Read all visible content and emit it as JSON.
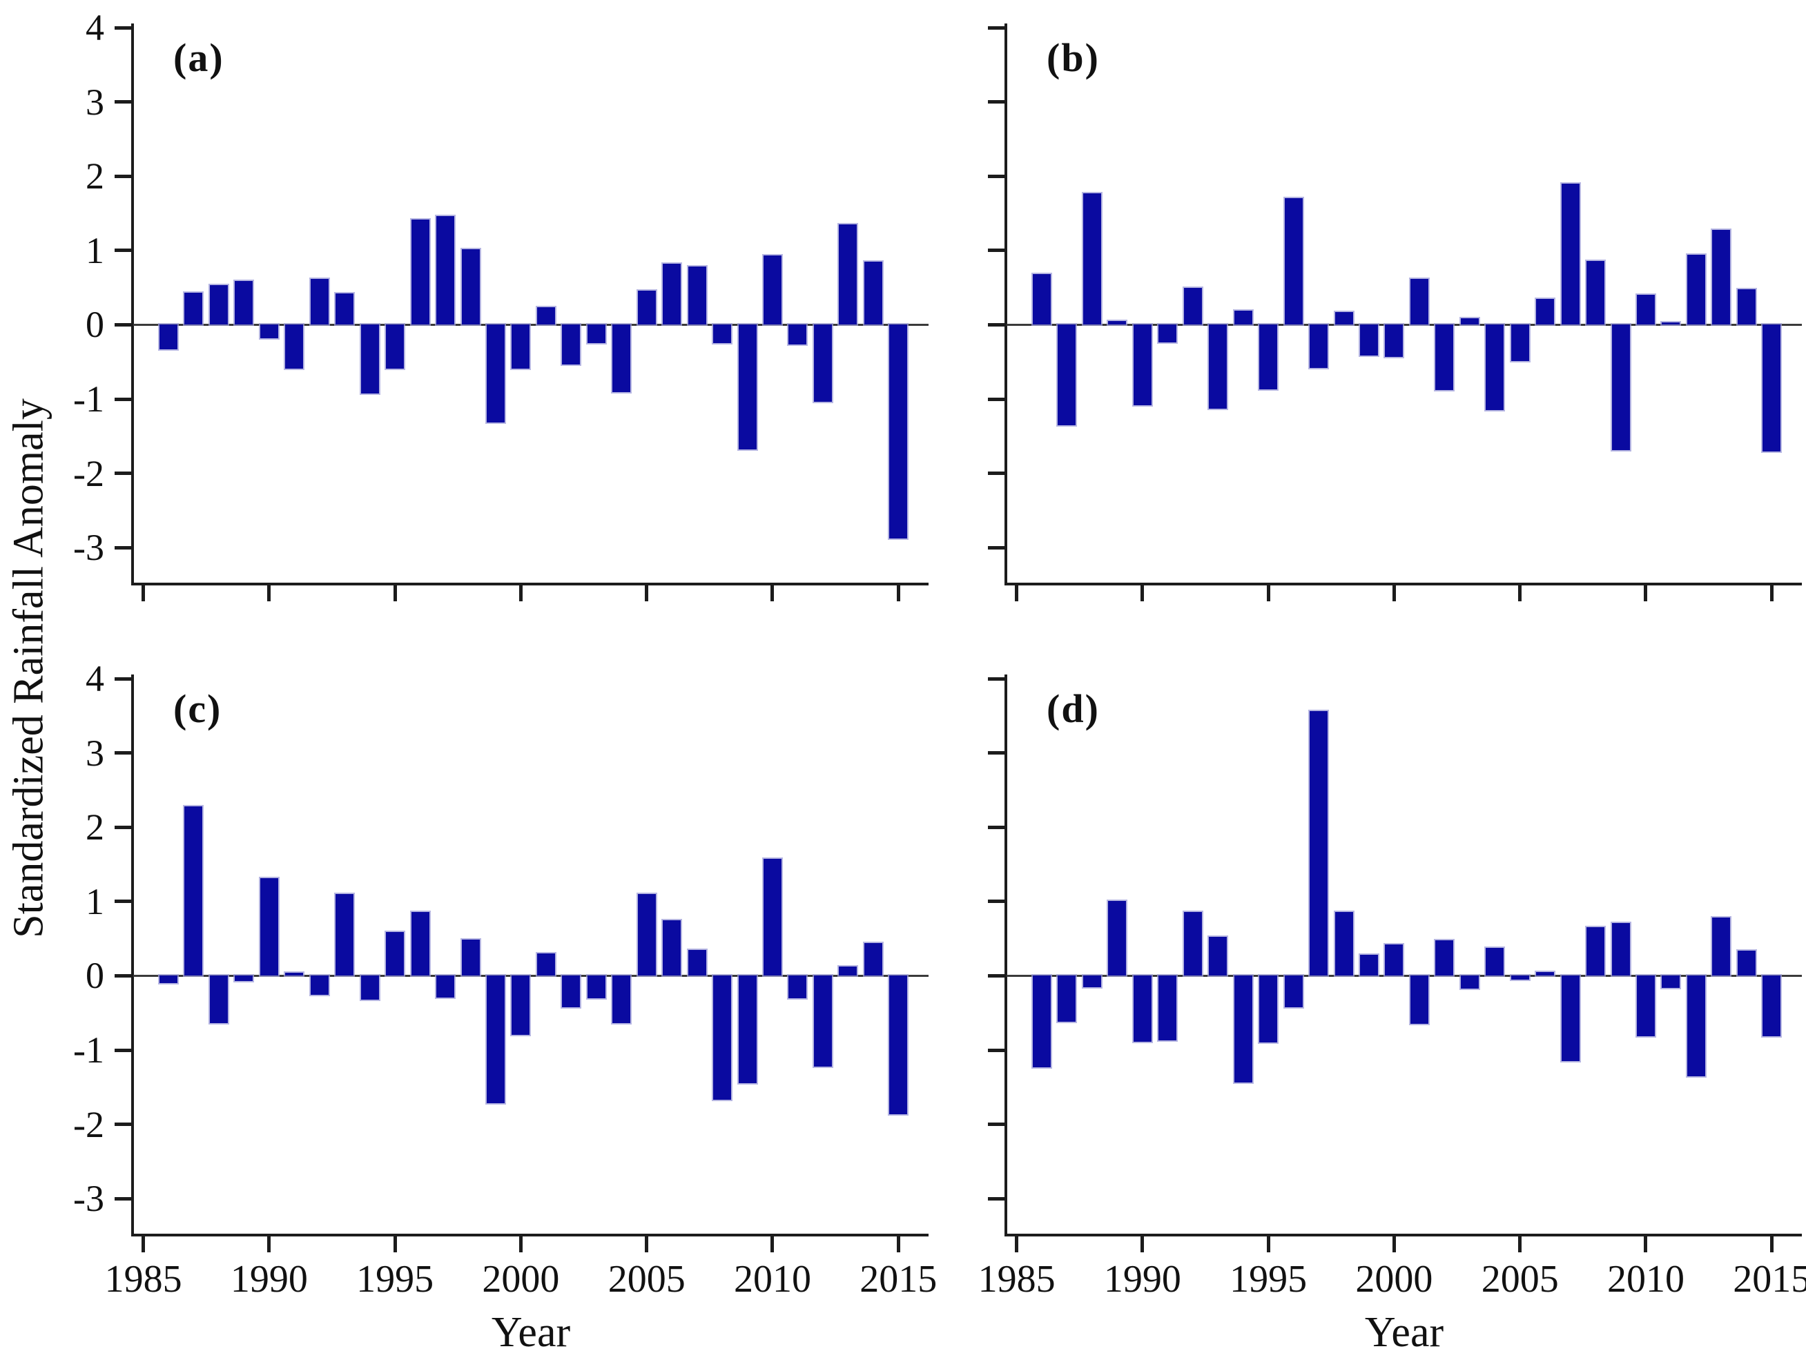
{
  "figure": {
    "y_axis_title": "Standardized Rainfall Anomaly",
    "x_axis_title": "Year",
    "bar_color": "#0a0aa0",
    "bar_edge_color": "#9e9ed8",
    "axis_color": "#1c1c1c"
  },
  "axes": {
    "ylim": [
      -3.5,
      4
    ],
    "yticks": [
      "4",
      "3",
      "2",
      "1",
      "0",
      "-1",
      "-2",
      "-3"
    ],
    "ytick_values": [
      4,
      3,
      2,
      1,
      0,
      -1,
      -2,
      -3
    ],
    "xlim": [
      1984.6,
      2016.2
    ],
    "xticks": [
      1985,
      1990,
      1995,
      2000,
      2005,
      2010,
      2015
    ]
  },
  "chart_data": [
    {
      "type": "bar",
      "panel": "(a)",
      "position": "top-left",
      "show_y_tick_labels": true,
      "show_x_tick_labels": false,
      "xlabel": "",
      "x": [
        1986,
        1987,
        1988,
        1989,
        1990,
        1991,
        1992,
        1993,
        1994,
        1995,
        1996,
        1997,
        1998,
        1999,
        2000,
        2001,
        2002,
        2003,
        2004,
        2005,
        2006,
        2007,
        2008,
        2009,
        2010,
        2011,
        2012,
        2013,
        2014,
        2015
      ],
      "values": [
        -0.33,
        0.43,
        0.53,
        0.59,
        -0.18,
        -0.59,
        0.62,
        0.42,
        -0.93,
        -0.59,
        1.42,
        1.46,
        1.02,
        -1.32,
        -0.59,
        0.24,
        -0.54,
        -0.25,
        -0.91,
        0.46,
        0.82,
        0.78,
        -0.25,
        -1.68,
        0.93,
        -0.27,
        -1.04,
        1.35,
        0.85,
        -2.88
      ]
    },
    {
      "type": "bar",
      "panel": "(b)",
      "position": "top-right",
      "show_y_tick_labels": false,
      "show_x_tick_labels": false,
      "xlabel": "",
      "x": [
        1986,
        1987,
        1988,
        1989,
        1990,
        1991,
        1992,
        1993,
        1994,
        1995,
        1996,
        1997,
        1998,
        1999,
        2000,
        2001,
        2002,
        2003,
        2004,
        2005,
        2006,
        2007,
        2008,
        2009,
        2010,
        2011,
        2012,
        2013,
        2014,
        2015
      ],
      "values": [
        0.68,
        -1.35,
        1.77,
        0.05,
        -1.08,
        -0.24,
        0.5,
        -1.13,
        0.19,
        -0.87,
        1.7,
        -0.58,
        0.17,
        -0.41,
        -0.43,
        0.62,
        -0.88,
        0.09,
        -1.15,
        -0.49,
        0.35,
        1.9,
        0.86,
        -1.69,
        0.4,
        0.03,
        0.94,
        1.28,
        0.48,
        -1.71
      ]
    },
    {
      "type": "bar",
      "panel": "(c)",
      "position": "bottom-left",
      "show_y_tick_labels": true,
      "show_x_tick_labels": true,
      "xlabel": "Year",
      "x": [
        1986,
        1987,
        1988,
        1989,
        1990,
        1991,
        1992,
        1993,
        1994,
        1995,
        1996,
        1997,
        1998,
        1999,
        2000,
        2001,
        2002,
        2003,
        2004,
        2005,
        2006,
        2007,
        2008,
        2009,
        2010,
        2011,
        2012,
        2013,
        2014,
        2015
      ],
      "values": [
        -0.1,
        2.28,
        -0.64,
        -0.07,
        1.31,
        0.04,
        -0.26,
        1.1,
        -0.32,
        0.59,
        0.86,
        -0.29,
        0.49,
        -1.72,
        -0.8,
        0.3,
        -0.42,
        -0.3,
        -0.64,
        1.1,
        0.75,
        0.35,
        -1.67,
        -1.45,
        1.57,
        -0.3,
        -1.22,
        0.12,
        0.44,
        -1.86
      ]
    },
    {
      "type": "bar",
      "panel": "(d)",
      "position": "bottom-right",
      "show_y_tick_labels": false,
      "show_x_tick_labels": true,
      "xlabel": "Year",
      "x": [
        1986,
        1987,
        1988,
        1989,
        1990,
        1991,
        1992,
        1993,
        1994,
        1995,
        1996,
        1997,
        1998,
        1999,
        2000,
        2001,
        2002,
        2003,
        2004,
        2005,
        2006,
        2007,
        2008,
        2009,
        2010,
        2011,
        2012,
        2013,
        2014,
        2015
      ],
      "values": [
        -1.23,
        -0.62,
        -0.15,
        1.01,
        -0.89,
        -0.87,
        0.86,
        0.52,
        -1.44,
        -0.9,
        -0.42,
        3.56,
        0.86,
        0.28,
        0.42,
        -0.65,
        0.48,
        -0.17,
        0.38,
        -0.05,
        0.05,
        -1.15,
        0.65,
        0.71,
        -0.81,
        -0.16,
        -1.35,
        0.78,
        0.34,
        -0.81
      ]
    }
  ]
}
